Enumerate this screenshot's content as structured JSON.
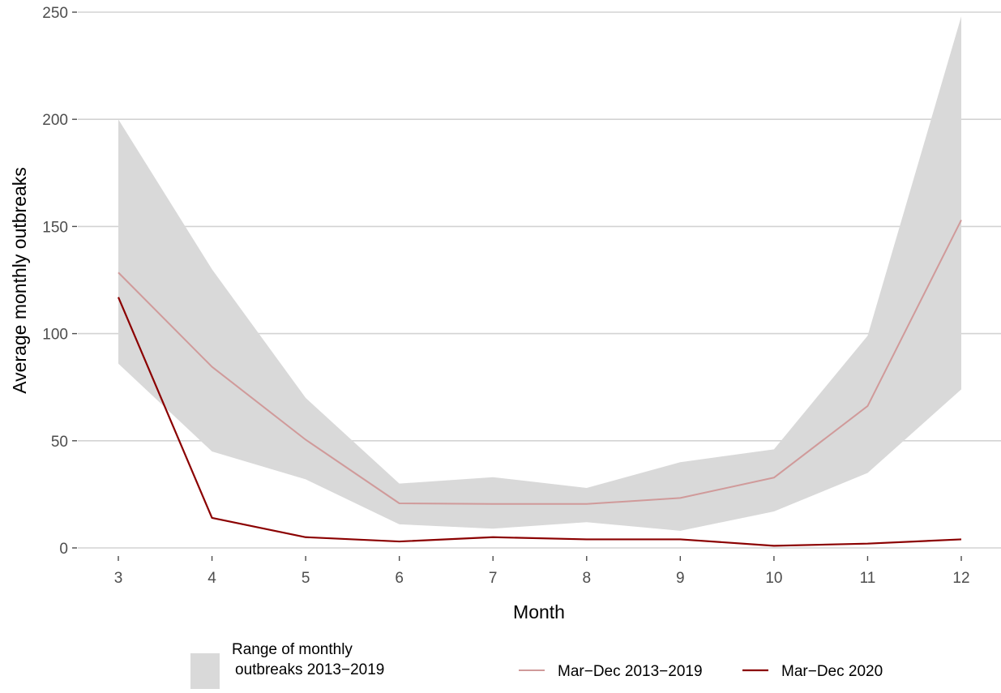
{
  "chart_data": {
    "type": "line",
    "title": "",
    "xlabel": "Month",
    "ylabel": "Average monthly outbreaks",
    "x": [
      3,
      4,
      5,
      6,
      7,
      8,
      9,
      10,
      11,
      12
    ],
    "xlim": [
      3,
      12
    ],
    "ylim": [
      0,
      250
    ],
    "xticks": [
      "3",
      "4",
      "5",
      "6",
      "7",
      "8",
      "9",
      "10",
      "11",
      "12"
    ],
    "yticks": [
      "0",
      "50",
      "100",
      "150",
      "200",
      "250"
    ],
    "grid": "horizontal",
    "legend_position": "bottom",
    "band": {
      "name": "Range of monthly outbreaks 2013−2019",
      "legend_label_line1": "Range of monthly",
      "legend_label_line2": "outbreaks 2013−2019",
      "color": "#d9d9d9",
      "lower": [
        86,
        45,
        32,
        11,
        9,
        12,
        8,
        17,
        35,
        74
      ],
      "upper": [
        200,
        130,
        70,
        30,
        33,
        28,
        40,
        46,
        99,
        248
      ]
    },
    "series": [
      {
        "name": "Mar−Dec 2013−2019",
        "color": "#d09a9a",
        "values": [
          128.5,
          84.5,
          50.5,
          20.8,
          20.5,
          20.5,
          23.3,
          32.8,
          66.2,
          153
        ]
      },
      {
        "name": "Mar−Dec 2020",
        "color": "#8b0000",
        "values": [
          117,
          14,
          5,
          3,
          5,
          4,
          4,
          1,
          2,
          4
        ]
      }
    ]
  }
}
